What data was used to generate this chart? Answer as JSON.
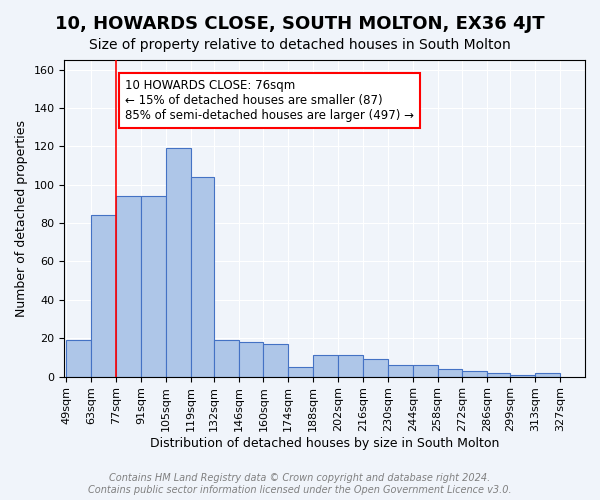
{
  "title": "10, HOWARDS CLOSE, SOUTH MOLTON, EX36 4JT",
  "subtitle": "Size of property relative to detached houses in South Molton",
  "xlabel": "Distribution of detached houses by size in South Molton",
  "ylabel": "Number of detached properties",
  "bar_values": [
    19,
    84,
    94,
    94,
    119,
    104,
    19,
    18,
    17,
    5,
    11,
    11,
    9,
    6,
    6,
    4,
    3,
    2,
    1,
    2
  ],
  "bin_labels": [
    "49sqm",
    "63sqm",
    "77sqm",
    "91sqm",
    "105sqm",
    "119sqm",
    "132sqm",
    "146sqm",
    "160sqm",
    "174sqm",
    "188sqm",
    "202sqm",
    "216sqm",
    "230sqm",
    "244sqm",
    "258sqm",
    "272sqm",
    "286sqm",
    "299sqm",
    "313sqm",
    "327sqm"
  ],
  "bar_color": "#aec6e8",
  "bar_edge_color": "#4472c4",
  "bar_left_edges": [
    49,
    63,
    77,
    91,
    105,
    119,
    132,
    146,
    160,
    174,
    188,
    202,
    216,
    230,
    244,
    258,
    272,
    286,
    299,
    313
  ],
  "bin_width": [
    14,
    14,
    14,
    14,
    14,
    13,
    14,
    14,
    14,
    14,
    14,
    14,
    14,
    14,
    14,
    14,
    14,
    13,
    14,
    14
  ],
  "red_line_x": 77,
  "ylim": [
    0,
    165
  ],
  "yticks": [
    0,
    20,
    40,
    60,
    80,
    100,
    120,
    140,
    160
  ],
  "annotation_title": "10 HOWARDS CLOSE: 76sqm",
  "annotation_line1": "← 15% of detached houses are smaller (87)",
  "annotation_line2": "85% of semi-detached houses are larger (497) →",
  "footer_line1": "Contains HM Land Registry data © Crown copyright and database right 2024.",
  "footer_line2": "Contains public sector information licensed under the Open Government Licence v3.0.",
  "background_color": "#f0f4fa",
  "plot_bg_color": "#f0f4fa",
  "title_fontsize": 13,
  "subtitle_fontsize": 10,
  "axis_label_fontsize": 9,
  "tick_fontsize": 8,
  "footer_fontsize": 7,
  "annotation_fontsize": 8.5
}
